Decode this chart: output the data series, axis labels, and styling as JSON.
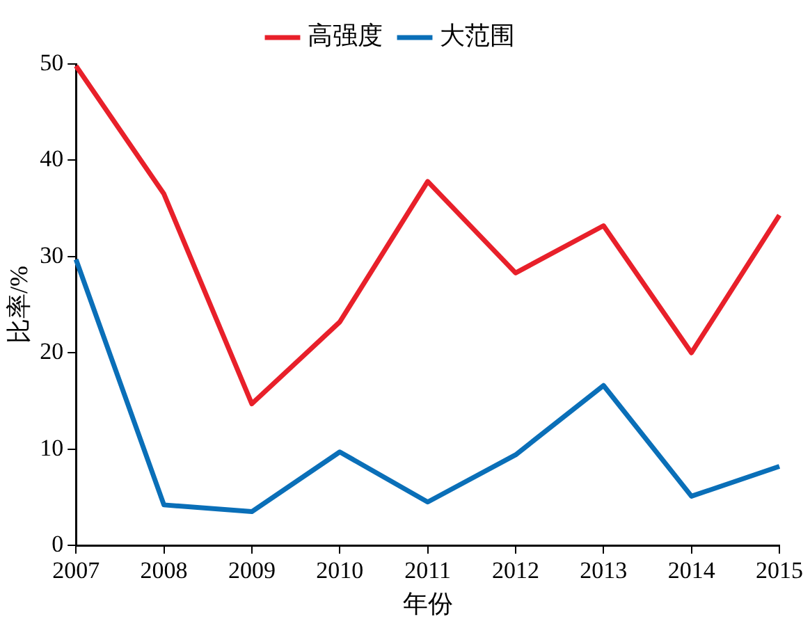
{
  "chart_data": {
    "type": "line",
    "xlabel": "年份",
    "ylabel": "比率/%",
    "categories": [
      "2007",
      "2008",
      "2009",
      "2010",
      "2011",
      "2012",
      "2013",
      "2014",
      "2015"
    ],
    "series": [
      {
        "name": "高强度",
        "color": "#e8202a",
        "values": [
          49.8,
          36.5,
          14.7,
          23.2,
          37.8,
          28.3,
          33.2,
          20.0,
          34.3
        ]
      },
      {
        "name": "大范围",
        "color": "#0a6fb8",
        "values": [
          29.7,
          4.2,
          3.5,
          9.7,
          4.5,
          9.4,
          16.6,
          5.1,
          8.2
        ]
      }
    ],
    "ylim": [
      0,
      50
    ],
    "yticks": [
      0,
      10,
      20,
      30,
      40,
      50
    ],
    "grid": false,
    "legend": "top",
    "marker": "none",
    "line_style": "solid"
  }
}
